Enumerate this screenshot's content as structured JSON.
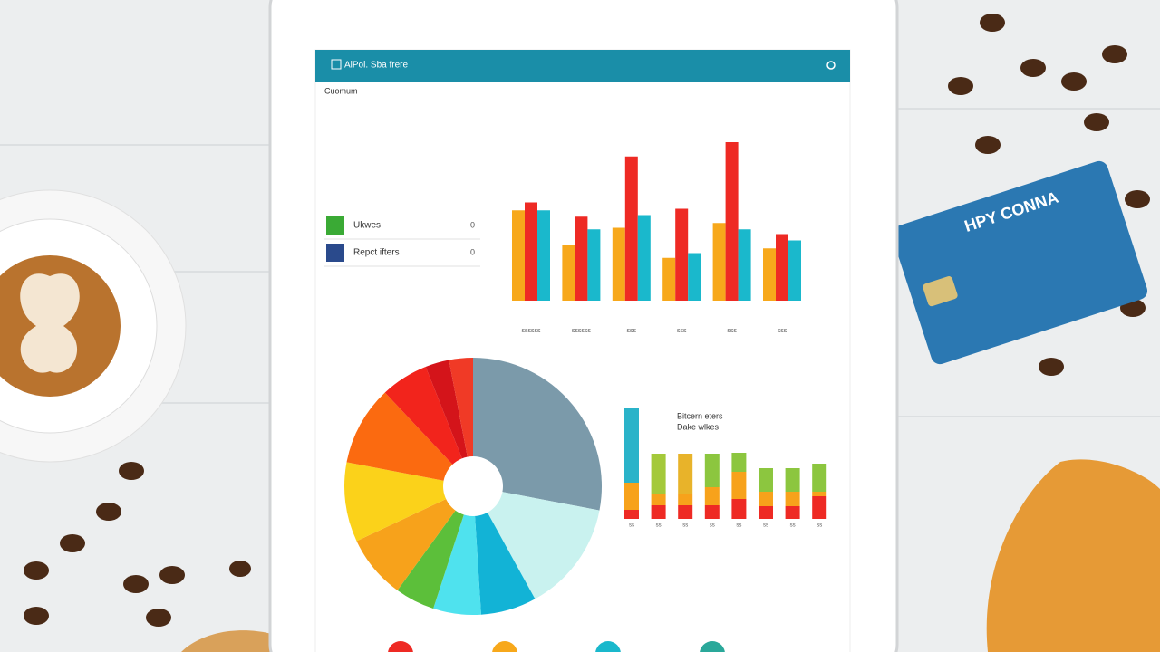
{
  "header": {
    "title": "AlPol. Sba frere",
    "subtitle": "Cuomum"
  },
  "legend": [
    {
      "label": "Ukwes",
      "value": 0,
      "color": "#3aaa35"
    },
    {
      "label": "Repct ifters",
      "value": 0,
      "color": "#2a4a8c"
    }
  ],
  "card": {
    "label": "HPY CONNA"
  },
  "chart_data": [
    {
      "type": "bar",
      "categories": [
        "ssssss",
        "ssssss",
        "sss",
        "sss",
        "sss",
        "sss"
      ],
      "ylim": [
        0,
        100
      ],
      "series": [
        {
          "color": "#f7a81b",
          "values": [
            57,
            35,
            46,
            27,
            49,
            33
          ]
        },
        {
          "color": "#ee2a24",
          "values": [
            62,
            53,
            91,
            58,
            100,
            42
          ]
        },
        {
          "color": "#1ab8cc",
          "values": [
            57,
            45,
            54,
            30,
            45,
            38
          ]
        }
      ]
    },
    {
      "type": "pie",
      "values": [
        28,
        14,
        7,
        6,
        5,
        8,
        10,
        10,
        6,
        3,
        3
      ],
      "colors": [
        "#7b9aaa",
        "#c9f2ef",
        "#12b3d6",
        "#4fe2ee",
        "#5cbf3a",
        "#f7a21b",
        "#fbd21a",
        "#fb6a10",
        "#f2241c",
        "#d4141a",
        "#f03a26"
      ]
    },
    {
      "type": "stacked-bar",
      "legend": [
        "Bitcern eters",
        "Dake wlkes"
      ],
      "categories": [
        "ss",
        "ss",
        "ss",
        "ss",
        "ss",
        "ss",
        "ss",
        "ss"
      ],
      "ylim": [
        0,
        130
      ],
      "series": [
        {
          "color": "#ee2a24",
          "values": [
            10,
            15,
            15,
            15,
            22,
            14,
            14,
            25
          ]
        },
        {
          "color": "#f7a21b",
          "values": [
            30,
            12,
            12,
            20,
            30,
            16,
            16,
            5
          ]
        },
        {
          "colors": [
            "#2ab3c9",
            "#a4c93a",
            "#e8b32a",
            "#8cc63f",
            "#8cc63f",
            "#8cc63f",
            "#8cc63f",
            "#8cc63f"
          ],
          "values": [
            83,
            45,
            45,
            37,
            21,
            26,
            26,
            31
          ]
        }
      ]
    }
  ]
}
